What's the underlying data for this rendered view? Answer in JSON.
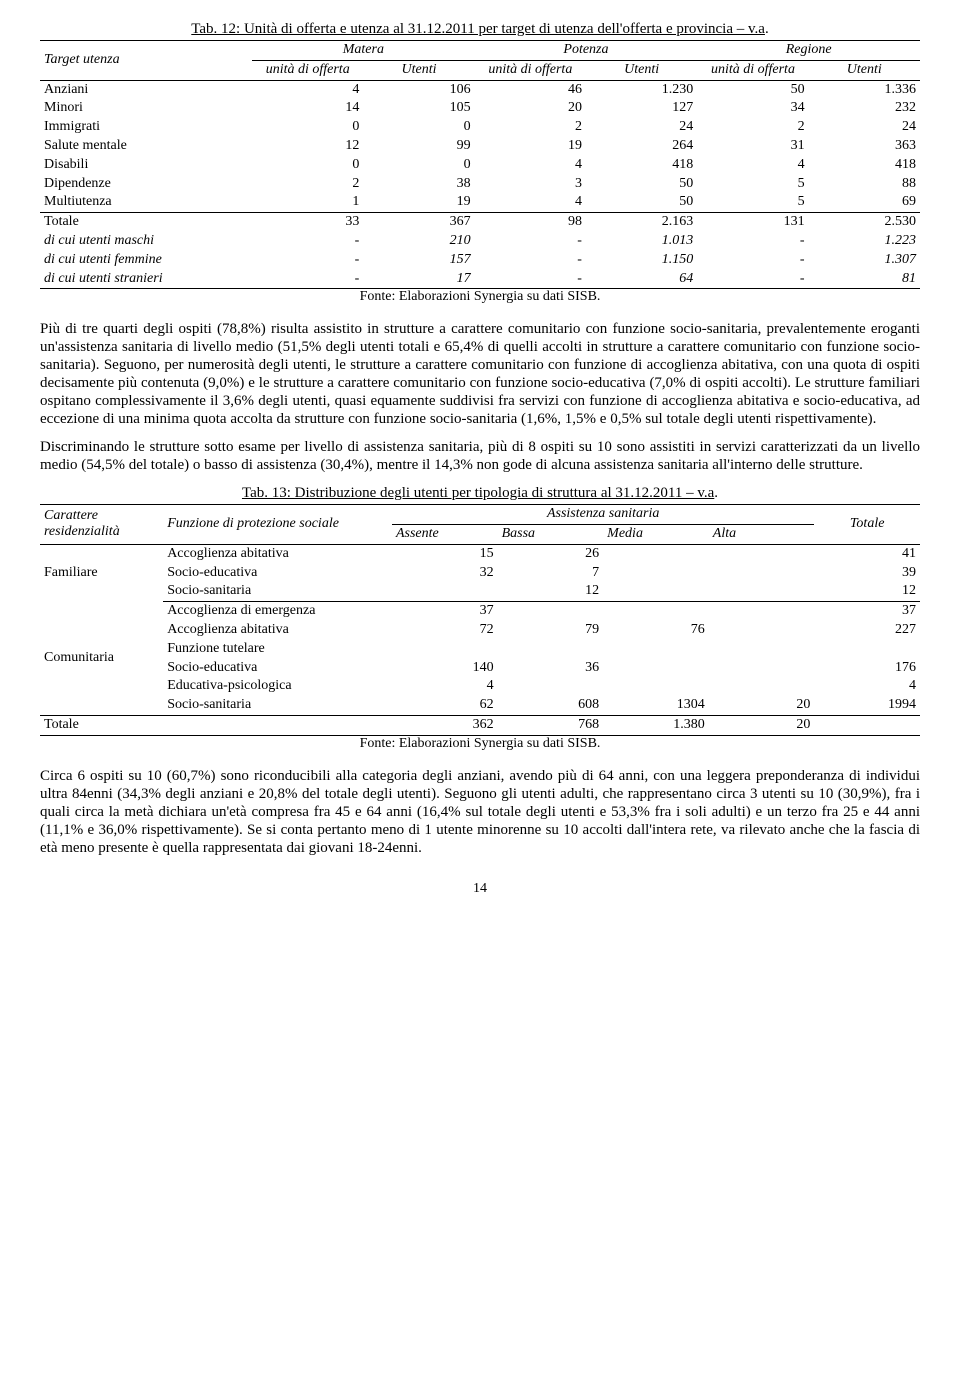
{
  "tab12": {
    "caption_pre": "Tab. 12: Unità di offerta e utenza al 31.12.2011 per target di utenza dell'offerta e provincia – v.a",
    "caption_dot": ".",
    "header": {
      "target": "Target utenza",
      "groups": [
        "Matera",
        "Potenza",
        "Regione"
      ],
      "sub_unit": "unità di offerta",
      "sub_utenti": "Utenti"
    },
    "rows": [
      {
        "label": "Anziani",
        "v": [
          "4",
          "106",
          "46",
          "1.230",
          "50",
          "1.336"
        ]
      },
      {
        "label": "Minori",
        "v": [
          "14",
          "105",
          "20",
          "127",
          "34",
          "232"
        ]
      },
      {
        "label": "Immigrati",
        "v": [
          "0",
          "0",
          "2",
          "24",
          "2",
          "24"
        ]
      },
      {
        "label": "Salute mentale",
        "v": [
          "12",
          "99",
          "19",
          "264",
          "31",
          "363"
        ]
      },
      {
        "label": "Disabili",
        "v": [
          "0",
          "0",
          "4",
          "418",
          "4",
          "418"
        ]
      },
      {
        "label": "Dipendenze",
        "v": [
          "2",
          "38",
          "3",
          "50",
          "5",
          "88"
        ]
      },
      {
        "label": "Multiutenza",
        "v": [
          "1",
          "19",
          "4",
          "50",
          "5",
          "69"
        ]
      }
    ],
    "totale": {
      "label": "Totale",
      "v": [
        "33",
        "367",
        "98",
        "2.163",
        "131",
        "2.530"
      ]
    },
    "subs": [
      {
        "label": "di cui utenti maschi",
        "v": [
          "-",
          "210",
          "-",
          "1.013",
          "-",
          "1.223"
        ]
      },
      {
        "label": "di cui utenti femmine",
        "v": [
          "-",
          "157",
          "-",
          "1.150",
          "-",
          "1.307"
        ]
      },
      {
        "label": "di cui utenti stranieri",
        "v": [
          "-",
          "17",
          "-",
          "64",
          "-",
          "81"
        ]
      }
    ],
    "source": "Fonte: Elaborazioni Synergia su dati SISB."
  },
  "para1": "Più di tre quarti degli ospiti (78,8%) risulta assistito in strutture a carattere comunitario con funzione socio-sanitaria, prevalentemente eroganti un'assistenza sanitaria di livello medio (51,5% degli utenti totali e 65,4% di quelli accolti in strutture a carattere comunitario con funzione socio-sanitaria). Seguono, per numerosità degli utenti, le strutture a carattere comunitario con funzione di accoglienza abitativa, con una quota di ospiti decisamente più contenuta (9,0%) e le strutture a carattere comunitario con funzione socio-educativa (7,0% di ospiti accolti). Le strutture familiari ospitano complessivamente il 3,6% degli utenti, quasi equamente suddivisi fra servizi con funzione di accoglienza abitativa e socio-educativa, ad eccezione di una minima quota accolta da strutture con funzione socio-sanitaria (1,6%, 1,5% e 0,5% sul totale degli utenti rispettivamente).",
  "para2": "Discriminando le strutture sotto esame per livello di assistenza sanitaria, più di 8 ospiti su 10 sono assistiti in servizi caratterizzati da un livello medio (54,5% del totale) o basso di assistenza (30,4%), mentre il 14,3% non gode di alcuna assistenza sanitaria all'interno delle strutture.",
  "tab13": {
    "caption_pre": "Tab. 13: Distribuzione degli utenti per tipologia di struttura al 31.12.2011 – v.a",
    "caption_dot": ".",
    "header": {
      "car": "Carattere residenzialità",
      "funz": "Funzione di protezione sociale",
      "ass": "Assistenza sanitaria",
      "levels": [
        "Assente",
        "Bassa",
        "Media",
        "Alta"
      ],
      "tot": "Totale"
    },
    "groups": [
      {
        "name": "Familiare",
        "rows": [
          {
            "label": "Accoglienza abitativa",
            "v": [
              "15",
              "26",
              "",
              "",
              "41"
            ]
          },
          {
            "label": "Socio-educativa",
            "v": [
              "32",
              "7",
              "",
              "",
              "39"
            ]
          },
          {
            "label": "Socio-sanitaria",
            "v": [
              "",
              "12",
              "",
              "",
              "12"
            ]
          }
        ]
      },
      {
        "name": "Comunitaria",
        "rows": [
          {
            "label": "Accoglienza di emergenza",
            "v": [
              "37",
              "",
              "",
              "",
              "37"
            ]
          },
          {
            "label": "Accoglienza abitativa",
            "v": [
              "72",
              "79",
              "76",
              "",
              "227"
            ]
          },
          {
            "label": "Funzione tutelare",
            "v": [
              "",
              "",
              "",
              "",
              ""
            ]
          },
          {
            "label": "Socio-educativa",
            "v": [
              "140",
              "36",
              "",
              "",
              "176"
            ]
          },
          {
            "label": "Educativa-psicologica",
            "v": [
              "4",
              "",
              "",
              "",
              "4"
            ]
          },
          {
            "label": "Socio-sanitaria",
            "v": [
              "62",
              "608",
              "1304",
              "20",
              "1994"
            ]
          }
        ]
      }
    ],
    "totale": {
      "label": "Totale",
      "v": [
        "362",
        "768",
        "1.380",
        "20",
        ""
      ]
    },
    "source": "Fonte: Elaborazioni Synergia su dati SISB."
  },
  "para3": "Circa 6 ospiti su 10 (60,7%) sono riconducibili alla categoria degli anziani, avendo più di 64 anni, con una leggera preponderanza di individui ultra 84enni (34,3% degli anziani e 20,8% del totale degli utenti). Seguono gli utenti adulti, che rappresentano circa 3 utenti su 10 (30,9%), fra i quali circa la metà dichiara un'età compresa fra 45 e 64 anni (16,4% sul totale degli utenti e 53,3% fra i soli adulti) e un terzo fra 25 e 44 anni (11,1% e 36,0% rispettivamente). Se si conta pertanto meno di 1 utente minorenne su 10 accolti dall'intera rete, va rilevato anche che la fascia di età meno presente è quella rappresentata dai giovani 18-24enni.",
  "pagenum": "14"
}
